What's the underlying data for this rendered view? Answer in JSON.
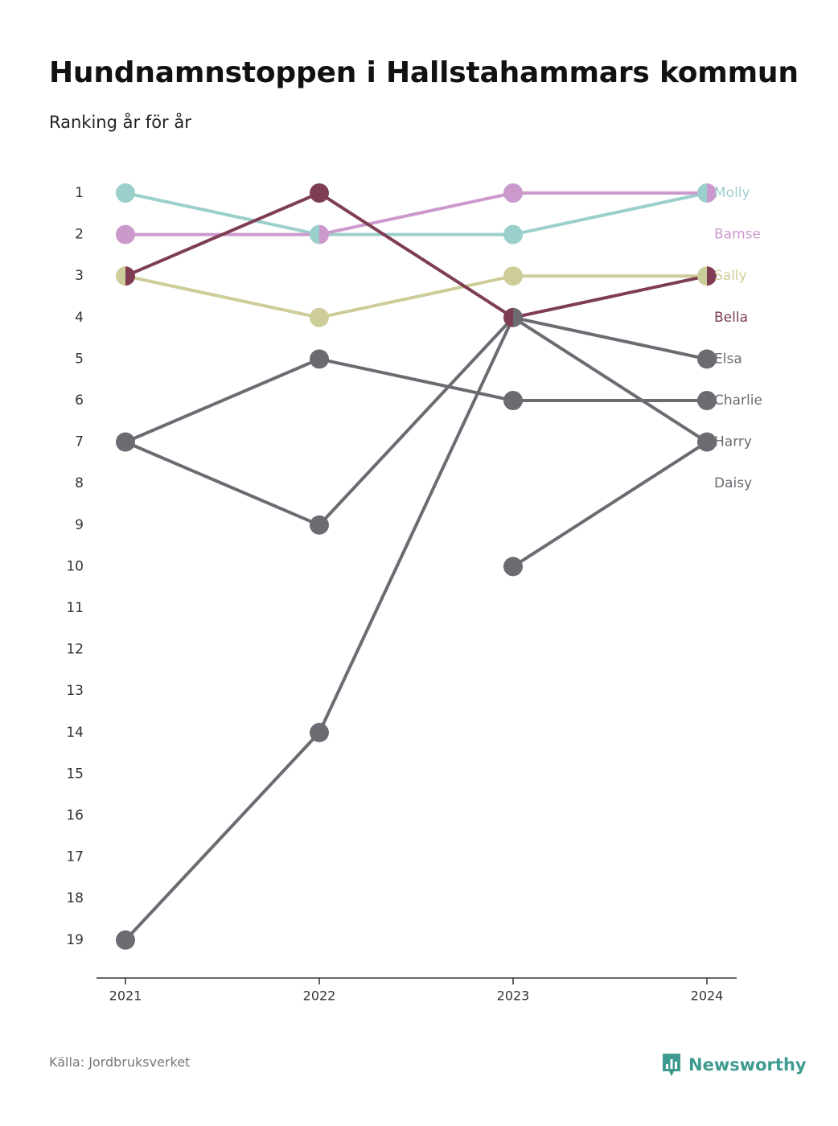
{
  "header": {
    "title": "Hundnamnstoppen i Hallstahammars kommun",
    "subtitle": "Ranking år för år"
  },
  "footer": {
    "source": "Källa: Jordbruksverket",
    "brand": "Newsworthy",
    "brand_icon": "newsworthy-logo-icon",
    "brand_color": "#3f9a8f"
  },
  "chart_data": {
    "type": "line",
    "title": "Hundnamnstoppen i Hallstahammars kommun",
    "subtitle": "Ranking år för år",
    "x": [
      "2021",
      "2022",
      "2023",
      "2024"
    ],
    "y_ticks": [
      1,
      2,
      3,
      4,
      5,
      6,
      7,
      8,
      9,
      10,
      11,
      12,
      13,
      14,
      15,
      16,
      17,
      18,
      19
    ],
    "ylim": [
      1,
      19
    ],
    "y_inverted": true,
    "xlabel": "",
    "ylabel": "",
    "grid": false,
    "legend": "labels at line ends (right)",
    "series": [
      {
        "name": "Molly",
        "color": "#9bcfcb",
        "values": [
          1,
          2,
          2,
          1
        ]
      },
      {
        "name": "Bamse",
        "color": "#cc99cc",
        "values": [
          2,
          2,
          1,
          1
        ]
      },
      {
        "name": "Sally",
        "color": "#cdcd99",
        "values": [
          3,
          4,
          3,
          3
        ]
      },
      {
        "name": "Bella",
        "color": "#7e3d53",
        "values": [
          3,
          1,
          4,
          3
        ]
      },
      {
        "name": "Elsa",
        "color": "#6c6b72",
        "values": [
          19,
          14,
          4,
          5
        ]
      },
      {
        "name": "Charlie",
        "color": "#6c6b72",
        "values": [
          7,
          5,
          6,
          6
        ]
      },
      {
        "name": "Harry",
        "color": "#6c6b72",
        "values": [
          7,
          9,
          4,
          7
        ]
      },
      {
        "name": "Daisy",
        "color": "#6c6b72",
        "values": [
          null,
          null,
          10,
          7
        ]
      }
    ],
    "label_colors": {
      "Molly": "#9bcfcb",
      "Bamse": "#cc99cc",
      "Sally": "#cdcd99",
      "Bella": "#7e3d53",
      "Elsa": "#6c6b72",
      "Charlie": "#6c6b72",
      "Harry": "#6c6b72",
      "Daisy": "#6c6b72"
    }
  }
}
